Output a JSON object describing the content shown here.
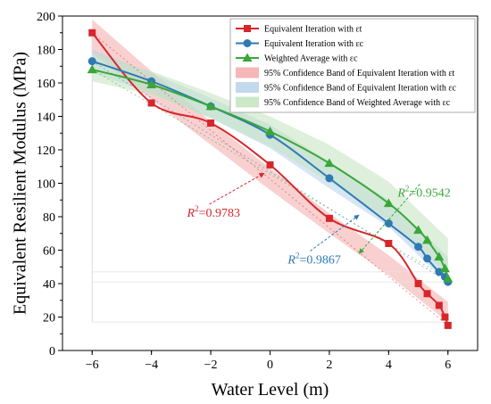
{
  "chart_data": {
    "type": "line",
    "xlabel": "Water Level (m)",
    "ylabel": "Equivalent Resilient Modulus (MPa)",
    "xlim": [
      -7,
      7
    ],
    "ylim": [
      0,
      200
    ],
    "xticks": [
      -6,
      -4,
      -2,
      0,
      2,
      4,
      6
    ],
    "xtick_labels": [
      "−6",
      "−4",
      "−2",
      "0",
      "2",
      "4",
      "6"
    ],
    "yticks": [
      0,
      20,
      40,
      60,
      80,
      100,
      120,
      140,
      160,
      180,
      200
    ],
    "yticks_labels": [
      "0",
      "20",
      "40",
      "60",
      "80",
      "100",
      "120",
      "140",
      "160",
      "180",
      "200"
    ],
    "grid": false,
    "legend_position": "top-right",
    "series": [
      {
        "name": "Equivalent Iteration with εt",
        "color": "#d7262b",
        "marker": "square",
        "x": [
          -6,
          -4,
          -2,
          0,
          2,
          4,
          5,
          5.3,
          5.7,
          5.9,
          6
        ],
        "y": [
          190,
          148,
          136,
          111,
          79,
          64,
          40,
          34,
          27,
          20,
          15
        ]
      },
      {
        "name": "Equivalent Iteration with εc",
        "color": "#2f79b5",
        "marker": "circle",
        "x": [
          -6,
          -4,
          -2,
          0,
          2,
          4,
          5,
          5.3,
          5.7,
          5.9,
          6
        ],
        "y": [
          173,
          161,
          146,
          129,
          103,
          76,
          62,
          55,
          47,
          44,
          41
        ]
      },
      {
        "name": "Weighted Average with εc",
        "color": "#3aa637",
        "marker": "triangle",
        "x": [
          -6,
          -4,
          -2,
          0,
          2,
          4,
          5,
          5.3,
          5.7,
          5.9,
          6
        ],
        "y": [
          168,
          159,
          146,
          131,
          112,
          88,
          72,
          66,
          56,
          49,
          43
        ]
      }
    ],
    "bands": [
      {
        "name": "95% Confidence Band of Equivalent Iteration with εt",
        "color": "#f4aaaa",
        "x": [
          -6,
          -4,
          -2,
          0,
          2,
          4,
          6
        ],
        "lower": [
          178,
          150,
          123,
          96,
          70,
          45,
          17
        ],
        "upper": [
          198,
          167,
          137,
          109,
          82,
          57,
          29
        ]
      },
      {
        "name": "95% Confidence Band of Equivalent Iteration with εc",
        "color": "#b7d2ea",
        "x": [
          -6,
          -4,
          -2,
          0,
          2,
          4,
          6
        ],
        "lower": [
          166,
          154,
          139,
          121,
          97,
          74,
          40
        ],
        "upper": [
          180,
          166,
          151,
          135,
          113,
          90,
          56
        ]
      },
      {
        "name": "95% Confidence Band of Weighted Average with εc",
        "color": "#c3e4bd",
        "x": [
          -6,
          -4,
          -2,
          0,
          2,
          4,
          6
        ],
        "lower": [
          161,
          153,
          139,
          122,
          101,
          78,
          45
        ],
        "upper": [
          178,
          167,
          154,
          140,
          123,
          101,
          67
        ]
      }
    ],
    "annotations": [
      {
        "text": "0.9783",
        "color": "#d7262b",
        "x": -2.8,
        "y": 80,
        "arrow_to_x": -0.2,
        "arrow_to_y": 106
      },
      {
        "text": "0.9542",
        "color": "#3aa637",
        "x": 4.3,
        "y": 92,
        "arrow_to_x": 3.0,
        "arrow_to_y": 58
      },
      {
        "text": "0.9867",
        "color": "#2f79b5",
        "x": 0.6,
        "y": 52,
        "arrow_to_x": 3.0,
        "arrow_to_y": 81
      }
    ],
    "annotation_prefix": "R",
    "annotation_sup": "2",
    "annotation_eq": "="
  }
}
